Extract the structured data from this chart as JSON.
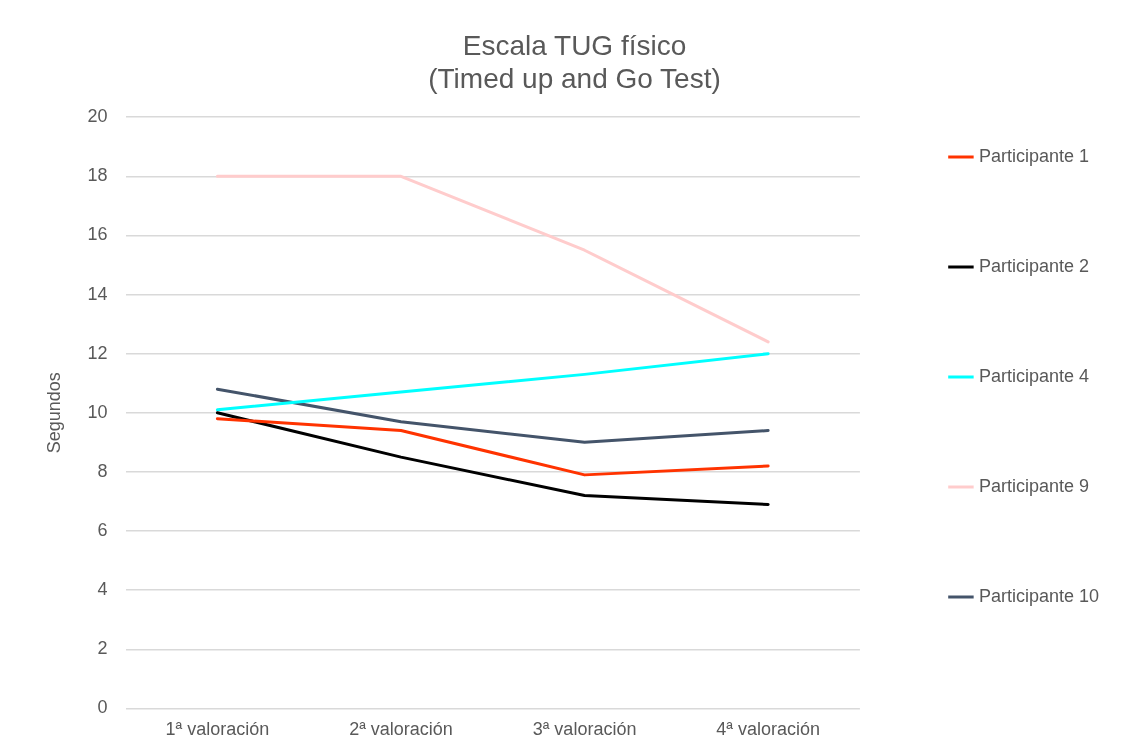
{
  "chart_data": {
    "type": "line",
    "title": "Escala TUG físico\n(Timed up and Go Test)",
    "ylabel": "Segundos",
    "categories": [
      "1ª valoración",
      "2ª valoración",
      "3ª valoración",
      "4ª valoración"
    ],
    "series": [
      {
        "name": "Participante 1",
        "color": "#ff3300",
        "values": [
          9.8,
          9.4,
          7.9,
          8.2
        ]
      },
      {
        "name": "Participante 2",
        "color": "#000000",
        "values": [
          10,
          8.5,
          7.2,
          6.9
        ]
      },
      {
        "name": "Participante 4",
        "color": "#00ffff",
        "values": [
          10.1,
          10.7,
          11.3,
          12
        ]
      },
      {
        "name": "Participante 9",
        "color": "#ffcccc",
        "values": [
          18,
          18,
          15.5,
          12.4
        ]
      },
      {
        "name": "Participante 10",
        "color": "#44546a",
        "values": [
          10.8,
          9.7,
          9,
          9.4
        ]
      }
    ],
    "ylim": [
      0,
      20
    ],
    "yticks": [
      0,
      2,
      4,
      6,
      8,
      10,
      12,
      14,
      16,
      18,
      20
    ],
    "grid": "y",
    "legend": "right",
    "marker": "none",
    "line_style": "solid"
  }
}
